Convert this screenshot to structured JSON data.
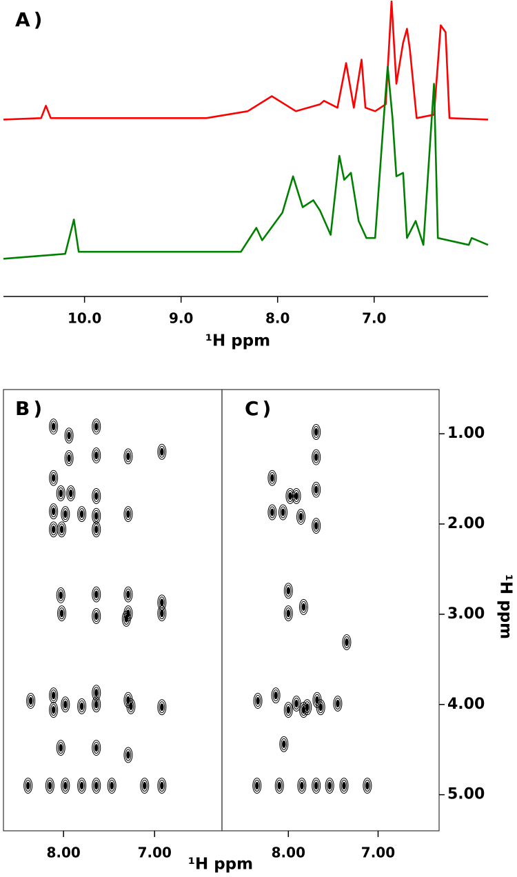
{
  "chart_data": [
    {
      "type": "line",
      "panel_label": "A)",
      "xlabel": "¹H ppm",
      "xlim": [
        10.84,
        5.82
      ],
      "xticks": [
        {
          "value": 10,
          "label": "10.0"
        },
        {
          "value": 9,
          "label": "9.0"
        },
        {
          "value": 8,
          "label": "8.0"
        },
        {
          "value": 7,
          "label": "7.0"
        }
      ],
      "ylim": [
        0,
        100
      ],
      "series": [
        {
          "color": "#ff0000",
          "x": [
            10.84,
            10.45,
            10.4,
            10.35,
            8.74,
            8.31,
            8.06,
            7.81,
            7.56,
            7.52,
            7.38,
            7.29,
            7.21,
            7.13,
            7.09,
            6.99,
            6.88,
            6.82,
            6.77,
            6.7,
            6.66,
            6.63,
            6.56,
            6.38,
            6.31,
            6.26,
            6.22,
            5.82
          ],
          "values": [
            59.0,
            59.5,
            63.8,
            59.5,
            59.5,
            61.9,
            67.1,
            61.9,
            64.3,
            65.5,
            63.1,
            78.6,
            63.1,
            79.8,
            63.1,
            61.9,
            64.3,
            100,
            71.4,
            85.7,
            90.5,
            83.3,
            59.5,
            60.7,
            91.7,
            89.3,
            59.5,
            59.0
          ]
        },
        {
          "color": "#008000",
          "x": [
            10.84,
            10.2,
            10.11,
            10.06,
            8.38,
            8.22,
            8.16,
            7.95,
            7.84,
            7.74,
            7.63,
            7.56,
            7.45,
            7.36,
            7.31,
            7.24,
            7.16,
            7.08,
            6.99,
            6.89,
            6.86,
            6.81,
            6.77,
            6.7,
            6.66,
            6.57,
            6.49,
            6.38,
            6.34,
            6.02,
            5.99,
            5.82
          ],
          "values": [
            10.7,
            12.4,
            24.3,
            13.1,
            13.1,
            21.4,
            17.1,
            26.7,
            39.3,
            28.6,
            31.0,
            27.4,
            19.0,
            46.4,
            38.1,
            40.5,
            23.8,
            17.9,
            17.9,
            64.3,
            77.4,
            59.5,
            39.3,
            40.5,
            17.9,
            23.8,
            15.5,
            71.4,
            17.9,
            15.5,
            17.9,
            15.5
          ]
        }
      ]
    },
    {
      "type": "scatter",
      "panel_label": "B)",
      "xlabel": "¹H ppm",
      "color": "#000000",
      "xlim": [
        8.66,
        6.26
      ],
      "xticks": [
        {
          "value": 8,
          "label": "8.00"
        },
        {
          "value": 7,
          "label": "7.00"
        }
      ],
      "ylim": [
        0.51,
        5.4
      ],
      "x": [
        8.11,
        7.64,
        7.94,
        7.64,
        7.94,
        8.11,
        8.03,
        7.92,
        7.64,
        7.29,
        6.92,
        8.11,
        7.98,
        7.8,
        7.64,
        7.29,
        8.11,
        8.02,
        7.64,
        8.03,
        7.64,
        7.29,
        6.92,
        8.02,
        7.64,
        7.29,
        7.31,
        6.92,
        8.36,
        8.11,
        8.11,
        7.98,
        7.8,
        7.64,
        7.64,
        7.29,
        7.26,
        6.92,
        8.03,
        7.64,
        7.29,
        8.39,
        8.15,
        7.98,
        7.8,
        7.64,
        7.47,
        7.11,
        6.92
      ],
      "values": [
        0.92,
        0.92,
        1.02,
        1.24,
        1.27,
        1.49,
        1.66,
        1.66,
        1.69,
        1.25,
        1.2,
        1.86,
        1.89,
        1.89,
        1.91,
        1.89,
        2.06,
        2.06,
        2.06,
        2.79,
        2.78,
        2.78,
        2.87,
        2.99,
        3.02,
        2.99,
        3.05,
        2.99,
        3.96,
        3.9,
        4.06,
        4.0,
        4.02,
        3.87,
        4.0,
        3.95,
        4.02,
        4.03,
        4.48,
        4.48,
        4.56,
        4.9,
        4.9,
        4.9,
        4.9,
        4.9,
        4.9,
        4.9,
        4.9
      ]
    },
    {
      "type": "scatter",
      "panel_label": "C)",
      "ylabel": "¹H ppm",
      "color": "#000000",
      "xlim": [
        8.74,
        6.32
      ],
      "xticks": [
        {
          "value": 8,
          "label": "8.00"
        },
        {
          "value": 7,
          "label": "7.00"
        }
      ],
      "ylim": [
        0.51,
        5.4
      ],
      "yticks": [
        {
          "value": 1,
          "label": "1.00"
        },
        {
          "value": 2,
          "label": "2.00"
        },
        {
          "value": 3,
          "label": "3.00"
        },
        {
          "value": 4,
          "label": "4.00"
        },
        {
          "value": 5,
          "label": "5.00"
        }
      ],
      "x": [
        7.69,
        7.69,
        8.18,
        7.98,
        7.91,
        7.69,
        8.18,
        8.06,
        7.86,
        7.69,
        8.0,
        8.0,
        7.83,
        7.35,
        8.34,
        8.14,
        8.0,
        7.91,
        7.79,
        7.68,
        7.83,
        7.64,
        7.45,
        8.05,
        8.35,
        8.1,
        7.85,
        7.69,
        7.54,
        7.38,
        7.12
      ],
      "values": [
        0.98,
        1.26,
        1.49,
        1.69,
        1.69,
        1.62,
        1.87,
        1.87,
        1.92,
        2.02,
        2.74,
        2.99,
        2.92,
        3.31,
        3.96,
        3.9,
        4.06,
        3.99,
        4.03,
        3.95,
        4.06,
        4.03,
        3.99,
        4.44,
        4.9,
        4.9,
        4.9,
        4.9,
        4.9,
        4.9,
        4.9
      ]
    }
  ]
}
